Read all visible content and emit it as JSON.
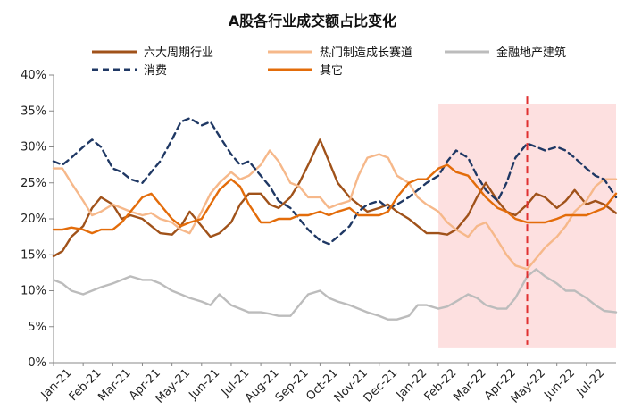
{
  "chart_data": {
    "type": "line",
    "title": "A股各行业成交额占比变化",
    "xlabel": "",
    "ylabel": "",
    "ylim": [
      0,
      40
    ],
    "yticks": [
      0,
      5,
      10,
      15,
      20,
      25,
      30,
      35,
      40
    ],
    "ytick_labels": [
      "0%",
      "5%",
      "10%",
      "15%",
      "20%",
      "25%",
      "30%",
      "35%",
      "40%"
    ],
    "x_ticks": [
      "Jan-21",
      "Feb-21",
      "Mar-21",
      "Apr-21",
      "May-21",
      "Jun-21",
      "Jul-21",
      "Aug-21",
      "Sep-21",
      "Oct-21",
      "Nov-21",
      "Dec-21",
      "Jan-22",
      "Feb-22",
      "Mar-22",
      "Apr-22",
      "May-22",
      "Jun-22",
      "Jul-22"
    ],
    "xlim": [
      0,
      19
    ],
    "grid": false,
    "legend_placement": "top",
    "shaded_region": {
      "x_start": 13.0,
      "x_end": 19.0,
      "color": "#fde0e0"
    },
    "vline": {
      "x": 16.0,
      "color": "#e03030",
      "style": "dashed"
    },
    "series": [
      {
        "name": "六大周期行业",
        "color": "#a0521a",
        "dash": "solid",
        "x": [
          0,
          0.3,
          0.6,
          1,
          1.3,
          1.6,
          2,
          2.3,
          2.6,
          3,
          3.3,
          3.6,
          4,
          4.3,
          4.6,
          5,
          5.3,
          5.6,
          6,
          6.3,
          6.6,
          7,
          7.3,
          7.6,
          8,
          8.3,
          8.6,
          9,
          9.3,
          9.6,
          10,
          10.3,
          10.6,
          11,
          11.3,
          11.6,
          12,
          12.3,
          12.6,
          13,
          13.3,
          13.6,
          14,
          14.3,
          14.6,
          15,
          15.3,
          15.6,
          16,
          16.3,
          16.6,
          17,
          17.3,
          17.6,
          18,
          18.3,
          18.6,
          19
        ],
        "y": [
          14.8,
          15.5,
          17.5,
          19.0,
          21.5,
          23.0,
          22.0,
          20.0,
          20.5,
          20.0,
          19.0,
          18.0,
          17.8,
          19.0,
          21.0,
          19.0,
          17.5,
          18.0,
          19.5,
          22.0,
          23.5,
          23.5,
          22.0,
          21.5,
          23.0,
          25.0,
          27.5,
          31.0,
          28.0,
          25.0,
          23.0,
          22.0,
          21.0,
          21.5,
          22.0,
          21.0,
          20.0,
          19.0,
          18.0,
          18.0,
          17.8,
          18.5,
          20.5,
          23.0,
          25.0,
          22.5,
          21.0,
          20.5,
          22.0,
          23.5,
          23.0,
          21.5,
          22.5,
          24.0,
          22.0,
          22.5,
          22.0,
          20.8
        ]
      },
      {
        "name": "热门制造成长赛道",
        "color": "#f6b88a",
        "dash": "solid",
        "x": [
          0,
          0.3,
          0.6,
          1,
          1.3,
          1.6,
          2,
          2.3,
          2.6,
          3,
          3.3,
          3.6,
          4,
          4.3,
          4.6,
          5,
          5.3,
          5.6,
          6,
          6.3,
          6.6,
          7,
          7.3,
          7.6,
          8,
          8.3,
          8.6,
          9,
          9.3,
          9.6,
          10,
          10.3,
          10.6,
          11,
          11.3,
          11.6,
          12,
          12.3,
          12.6,
          13,
          13.3,
          13.6,
          14,
          14.3,
          14.6,
          15,
          15.3,
          15.6,
          16,
          16.3,
          16.6,
          17,
          17.3,
          17.6,
          18,
          18.3,
          18.6,
          19
        ],
        "y": [
          27.0,
          27.0,
          25.0,
          22.5,
          20.5,
          21.0,
          22.0,
          21.5,
          21.0,
          20.5,
          20.8,
          20.0,
          19.5,
          18.5,
          18.0,
          21.0,
          23.5,
          25.0,
          26.5,
          25.5,
          26.0,
          27.5,
          29.5,
          28.0,
          25.0,
          24.5,
          23.0,
          23.0,
          21.5,
          22.0,
          22.5,
          26.0,
          28.5,
          29.0,
          28.5,
          26.0,
          25.0,
          23.0,
          22.0,
          21.0,
          19.5,
          18.5,
          17.5,
          19.0,
          19.5,
          17.0,
          15.0,
          13.5,
          13.0,
          14.5,
          16.0,
          17.5,
          19.0,
          21.0,
          22.5,
          24.5,
          25.5,
          25.5
        ]
      },
      {
        "name": "金融地产建筑",
        "color": "#bcbcbc",
        "dash": "solid",
        "x": [
          0,
          0.3,
          0.6,
          1,
          1.3,
          1.6,
          2,
          2.3,
          2.6,
          3,
          3.3,
          3.6,
          4,
          4.3,
          4.6,
          5,
          5.3,
          5.6,
          6,
          6.3,
          6.6,
          7,
          7.3,
          7.6,
          8,
          8.3,
          8.6,
          9,
          9.3,
          9.6,
          10,
          10.3,
          10.6,
          11,
          11.3,
          11.6,
          12,
          12.3,
          12.6,
          13,
          13.3,
          13.6,
          14,
          14.3,
          14.6,
          15,
          15.3,
          15.6,
          16,
          16.3,
          16.6,
          17,
          17.3,
          17.6,
          18,
          18.3,
          18.6,
          19
        ],
        "y": [
          11.5,
          11.0,
          10.0,
          9.5,
          10.0,
          10.5,
          11.0,
          11.5,
          12.0,
          11.5,
          11.5,
          11.0,
          10.0,
          9.5,
          9.0,
          8.5,
          8.0,
          9.5,
          8.0,
          7.5,
          7.0,
          7.0,
          6.8,
          6.5,
          6.5,
          8.0,
          9.5,
          10.0,
          9.0,
          8.5,
          8.0,
          7.5,
          7.0,
          6.5,
          6.0,
          6.0,
          6.5,
          8.0,
          8.0,
          7.5,
          7.8,
          8.5,
          9.5,
          9.0,
          8.0,
          7.5,
          7.5,
          9.0,
          12.0,
          13.0,
          12.0,
          11.0,
          10.0,
          10.0,
          9.0,
          8.0,
          7.2,
          7.0
        ]
      },
      {
        "name": "消费",
        "color": "#1f3864",
        "dash": "dashed",
        "x": [
          0,
          0.3,
          0.6,
          1,
          1.3,
          1.6,
          2,
          2.3,
          2.6,
          3,
          3.3,
          3.6,
          4,
          4.3,
          4.6,
          5,
          5.3,
          5.6,
          6,
          6.3,
          6.6,
          7,
          7.3,
          7.6,
          8,
          8.3,
          8.6,
          9,
          9.3,
          9.6,
          10,
          10.3,
          10.6,
          11,
          11.3,
          11.6,
          12,
          12.3,
          12.6,
          13,
          13.3,
          13.6,
          14,
          14.3,
          14.6,
          15,
          15.3,
          15.6,
          16,
          16.3,
          16.6,
          17,
          17.3,
          17.6,
          18,
          18.3,
          18.6,
          19
        ],
        "y": [
          28.0,
          27.5,
          28.5,
          30.0,
          31.0,
          30.0,
          27.0,
          26.5,
          25.5,
          25.0,
          26.5,
          28.0,
          31.0,
          33.5,
          34.0,
          33.0,
          33.5,
          31.5,
          29.0,
          27.5,
          28.0,
          26.0,
          24.5,
          22.5,
          21.5,
          20.0,
          18.5,
          17.0,
          16.5,
          17.5,
          19.0,
          21.0,
          22.0,
          22.5,
          21.5,
          22.0,
          23.0,
          24.0,
          25.0,
          26.0,
          28.0,
          29.5,
          28.5,
          26.0,
          24.0,
          22.5,
          25.0,
          28.5,
          30.5,
          30.0,
          29.5,
          30.0,
          29.5,
          28.5,
          27.0,
          26.0,
          25.5,
          23.0
        ]
      },
      {
        "name": "其它",
        "color": "#e36c0a",
        "dash": "solid",
        "x": [
          0,
          0.3,
          0.6,
          1,
          1.3,
          1.6,
          2,
          2.3,
          2.6,
          3,
          3.3,
          3.6,
          4,
          4.3,
          4.6,
          5,
          5.3,
          5.6,
          6,
          6.3,
          6.6,
          7,
          7.3,
          7.6,
          8,
          8.3,
          8.6,
          9,
          9.3,
          9.6,
          10,
          10.3,
          10.6,
          11,
          11.3,
          11.6,
          12,
          12.3,
          12.6,
          13,
          13.3,
          13.6,
          14,
          14.3,
          14.6,
          15,
          15.3,
          15.6,
          16,
          16.3,
          16.6,
          17,
          17.3,
          17.6,
          18,
          18.3,
          18.6,
          19
        ],
        "y": [
          18.5,
          18.5,
          18.8,
          18.5,
          18.0,
          18.5,
          18.5,
          19.5,
          21.0,
          23.0,
          23.5,
          22.0,
          20.0,
          19.0,
          19.5,
          20.0,
          22.0,
          24.0,
          25.5,
          24.5,
          22.0,
          19.5,
          19.5,
          20.0,
          20.0,
          20.5,
          20.5,
          21.0,
          20.5,
          21.0,
          21.5,
          20.5,
          20.5,
          20.5,
          21.0,
          23.0,
          25.0,
          25.5,
          25.5,
          27.0,
          27.5,
          26.5,
          26.0,
          24.5,
          23.0,
          21.5,
          21.0,
          20.0,
          19.5,
          19.5,
          19.5,
          20.0,
          20.5,
          20.5,
          20.5,
          21.0,
          21.5,
          23.5
        ]
      }
    ]
  }
}
